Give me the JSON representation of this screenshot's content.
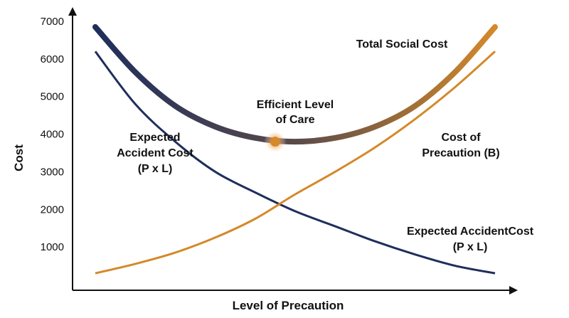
{
  "chart_data": {
    "type": "line",
    "xlabel": "Level of Precaution",
    "ylabel": "Cost",
    "x_range": [
      0,
      100
    ],
    "ylim": [
      0,
      7000
    ],
    "yticks": [
      1000,
      2000,
      3000,
      4000,
      5000,
      6000,
      7000
    ],
    "grid": false,
    "legend": "none",
    "series": [
      {
        "name": "Total Social Cost",
        "color": "#1f2e5c",
        "color_end": "#d4892a",
        "x": [
          0,
          10,
          20,
          30,
          40,
          50,
          60,
          70,
          80,
          90,
          100
        ],
        "y": [
          6850,
          5650,
          4750,
          4200,
          3900,
          3800,
          3900,
          4200,
          4750,
          5650,
          6850
        ]
      },
      {
        "name": "Expected Accident Cost (P x L)",
        "color": "#1f2e5c",
        "x": [
          0,
          10,
          20,
          30,
          40,
          50,
          60,
          70,
          80,
          90,
          100
        ],
        "y": [
          6200,
          4800,
          3800,
          3000,
          2450,
          1950,
          1550,
          1150,
          800,
          500,
          300
        ]
      },
      {
        "name": "Cost of Precaution (B)",
        "color": "#d4892a",
        "x": [
          0,
          10,
          20,
          30,
          40,
          50,
          60,
          70,
          80,
          90,
          100
        ],
        "y": [
          300,
          550,
          850,
          1250,
          1750,
          2400,
          3000,
          3650,
          4400,
          5250,
          6200
        ]
      }
    ],
    "optimum": {
      "x": 45,
      "y": 3800,
      "color": "#d4892a"
    },
    "annotations": {
      "total": "Total Social Cost",
      "efficient_l1": "Efficient Level",
      "efficient_l2": "of Care",
      "accident_left_l1": "Expected",
      "accident_left_l2": "Accident Cost",
      "accident_left_l3": "(P x L)",
      "precaution_l1": "Cost of",
      "precaution_l2": "Precaution (B)",
      "accident_right_l1": "Expected AccidentCost",
      "accident_right_l2": "(P x L)"
    }
  }
}
